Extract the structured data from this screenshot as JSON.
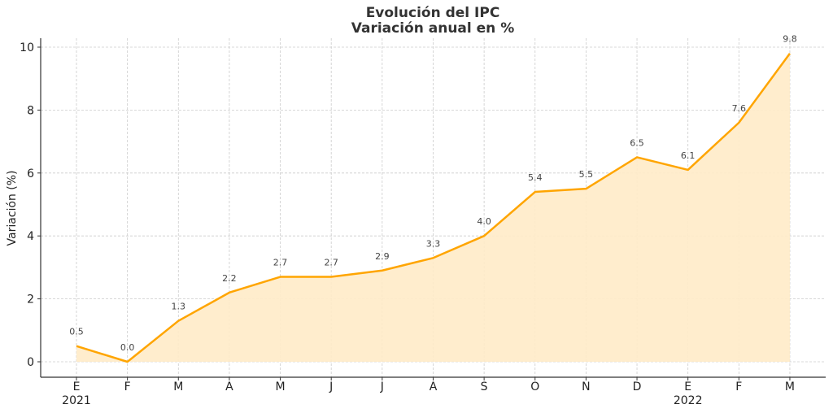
{
  "chart_data": {
    "type": "area",
    "title": "Evolución del IPC",
    "subtitle": "Variación anual en %",
    "xlabel": "",
    "ylabel": "Variación (%)",
    "categories": [
      "E",
      "F",
      "M",
      "A",
      "M",
      "J",
      "J",
      "A",
      "S",
      "O",
      "N",
      "D",
      "E",
      "F",
      "M"
    ],
    "year_labels": [
      {
        "index": 0,
        "label": "2021"
      },
      {
        "index": 12,
        "label": "2022"
      }
    ],
    "series": [
      {
        "name": "IPC",
        "values": [
          0.5,
          0.0,
          1.3,
          2.2,
          2.7,
          2.7,
          2.9,
          3.3,
          4.0,
          5.4,
          5.5,
          6.5,
          6.1,
          7.6,
          9.8
        ]
      }
    ],
    "data_labels": [
      "0.5",
      "0.0",
      "1.3",
      "2.2",
      "2.7",
      "2.7",
      "2.9",
      "3.3",
      "4.0",
      "5.4",
      "5.5",
      "6.5",
      "6.1",
      "7.6",
      "9.8"
    ],
    "yticks": [
      0,
      2,
      4,
      6,
      8,
      10
    ],
    "ylim": [
      -0.5,
      10.3
    ],
    "grid": true,
    "legend": null
  },
  "colors": {
    "line": "#FFA500",
    "fill": "#FFEBC8",
    "grid": "#cccccc",
    "axis": "#333333",
    "text": "#333333"
  }
}
